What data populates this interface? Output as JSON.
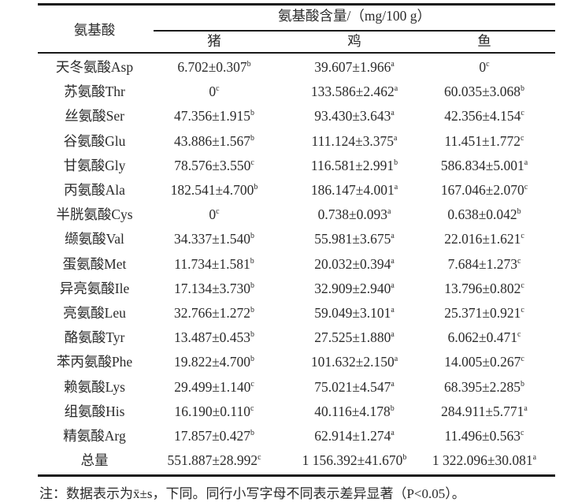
{
  "table": {
    "row_header": "氨基酸",
    "group_header": "氨基酸含量/（mg/100 g）",
    "columns": [
      "猪",
      "鸡",
      "鱼"
    ],
    "rows": [
      {
        "name": "天冬氨酸Asp",
        "cells": [
          {
            "v": "6.702±0.307",
            "s": "b"
          },
          {
            "v": "39.607±1.966",
            "s": "a"
          },
          {
            "v": "0",
            "s": "c"
          }
        ]
      },
      {
        "name": "苏氨酸Thr",
        "cells": [
          {
            "v": "0",
            "s": "c"
          },
          {
            "v": "133.586±2.462",
            "s": "a"
          },
          {
            "v": "60.035±3.068",
            "s": "b"
          }
        ]
      },
      {
        "name": "丝氨酸Ser",
        "cells": [
          {
            "v": "47.356±1.915",
            "s": "b"
          },
          {
            "v": "93.430±3.643",
            "s": "a"
          },
          {
            "v": "42.356±4.154",
            "s": "c"
          }
        ]
      },
      {
        "name": "谷氨酸Glu",
        "cells": [
          {
            "v": "43.886±1.567",
            "s": "b"
          },
          {
            "v": "111.124±3.375",
            "s": "a"
          },
          {
            "v": "11.451±1.772",
            "s": "c"
          }
        ]
      },
      {
        "name": "甘氨酸Gly",
        "cells": [
          {
            "v": "78.576±3.550",
            "s": "c"
          },
          {
            "v": "116.581±2.991",
            "s": "b"
          },
          {
            "v": "586.834±5.001",
            "s": "a"
          }
        ]
      },
      {
        "name": "丙氨酸Ala",
        "cells": [
          {
            "v": "182.541±4.700",
            "s": "b"
          },
          {
            "v": "186.147±4.001",
            "s": "a"
          },
          {
            "v": "167.046±2.070",
            "s": "c"
          }
        ]
      },
      {
        "name": "半胱氨酸Cys",
        "cells": [
          {
            "v": "0",
            "s": "c"
          },
          {
            "v": "0.738±0.093",
            "s": "a"
          },
          {
            "v": "0.638±0.042",
            "s": "b"
          }
        ]
      },
      {
        "name": "缬氨酸Val",
        "cells": [
          {
            "v": "34.337±1.540",
            "s": "b"
          },
          {
            "v": "55.981±3.675",
            "s": "a"
          },
          {
            "v": "22.016±1.621",
            "s": "c"
          }
        ]
      },
      {
        "name": "蛋氨酸Met",
        "cells": [
          {
            "v": "11.734±1.581",
            "s": "b"
          },
          {
            "v": "20.032±0.394",
            "s": "a"
          },
          {
            "v": "7.684±1.273",
            "s": "c"
          }
        ]
      },
      {
        "name": "异亮氨酸Ile",
        "cells": [
          {
            "v": "17.134±3.730",
            "s": "b"
          },
          {
            "v": "32.909±2.940",
            "s": "a"
          },
          {
            "v": "13.796±0.802",
            "s": "c"
          }
        ]
      },
      {
        "name": "亮氨酸Leu",
        "cells": [
          {
            "v": "32.766±1.272",
            "s": "b"
          },
          {
            "v": "59.049±3.101",
            "s": "a"
          },
          {
            "v": "25.371±0.921",
            "s": "c"
          }
        ]
      },
      {
        "name": "酪氨酸Tyr",
        "cells": [
          {
            "v": "13.487±0.453",
            "s": "b"
          },
          {
            "v": "27.525±1.880",
            "s": "a"
          },
          {
            "v": "6.062±0.471",
            "s": "c"
          }
        ]
      },
      {
        "name": "苯丙氨酸Phe",
        "cells": [
          {
            "v": "19.822±4.700",
            "s": "b"
          },
          {
            "v": "101.632±2.150",
            "s": "a"
          },
          {
            "v": "14.005±0.267",
            "s": "c"
          }
        ]
      },
      {
        "name": "赖氨酸Lys",
        "cells": [
          {
            "v": "29.499±1.140",
            "s": "c"
          },
          {
            "v": "75.021±4.547",
            "s": "a"
          },
          {
            "v": "68.395±2.285",
            "s": "b"
          }
        ]
      },
      {
        "name": "组氨酸His",
        "cells": [
          {
            "v": "16.190±0.110",
            "s": "c"
          },
          {
            "v": "40.116±4.178",
            "s": "b"
          },
          {
            "v": "284.911±5.771",
            "s": "a"
          }
        ]
      },
      {
        "name": "精氨酸Arg",
        "cells": [
          {
            "v": "17.857±0.427",
            "s": "b"
          },
          {
            "v": "62.914±1.274",
            "s": "a"
          },
          {
            "v": "11.496±0.563",
            "s": "c"
          }
        ]
      },
      {
        "name": "总量",
        "cells": [
          {
            "v": "551.887±28.992",
            "s": "c"
          },
          {
            "v": "1 156.392±41.670",
            "s": "b"
          },
          {
            "v": "1 322.096±30.081",
            "s": "a"
          }
        ]
      }
    ]
  },
  "note": "注：数据表示为x̄±s，下同。同行小写字母不同表示差异显著（P<0.05）。"
}
